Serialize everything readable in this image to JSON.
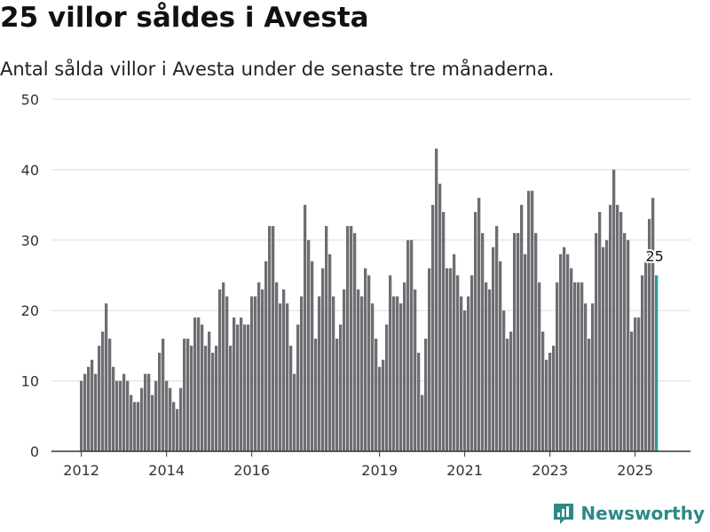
{
  "header": {
    "title": "25 villor såldes i Avesta",
    "subtitle": "Antal sålda villor i Avesta under de senaste tre månaderna."
  },
  "brand": {
    "name": "Newsworthy",
    "color": "#2c8a86",
    "icon": "newsworthy-logo-icon"
  },
  "colors": {
    "bar": "#6e6d72",
    "highlight": "#2a9a96",
    "grid": "#dddddd",
    "axis": "#333333"
  },
  "chart_data": {
    "type": "bar",
    "ylim": [
      0,
      50
    ],
    "yticks": [
      0,
      10,
      20,
      30,
      40,
      50
    ],
    "xticks": [
      {
        "label": "2012",
        "index": 0
      },
      {
        "label": "2014",
        "index": 24
      },
      {
        "label": "2016",
        "index": 48
      },
      {
        "label": "2019",
        "index": 84
      },
      {
        "label": "2021",
        "index": 108
      },
      {
        "label": "2023",
        "index": 132
      },
      {
        "label": "2025",
        "index": 156
      }
    ],
    "annotation": {
      "label": "25",
      "value": 25
    },
    "start": "2012-01",
    "values": [
      10,
      11,
      12,
      13,
      11,
      15,
      17,
      21,
      16,
      12,
      10,
      10,
      11,
      10,
      8,
      7,
      7,
      9,
      11,
      11,
      8,
      10,
      14,
      16,
      10,
      9,
      7,
      6,
      9,
      16,
      16,
      15,
      19,
      19,
      18,
      15,
      17,
      14,
      15,
      23,
      24,
      22,
      15,
      19,
      18,
      19,
      18,
      18,
      22,
      22,
      24,
      23,
      27,
      32,
      32,
      24,
      21,
      23,
      21,
      15,
      11,
      18,
      22,
      35,
      30,
      27,
      16,
      22,
      26,
      32,
      28,
      22,
      16,
      18,
      23,
      32,
      32,
      31,
      23,
      22,
      26,
      25,
      21,
      16,
      12,
      13,
      18,
      25,
      22,
      22,
      21,
      24,
      30,
      30,
      23,
      14,
      8,
      16,
      26,
      35,
      43,
      38,
      34,
      26,
      26,
      28,
      25,
      22,
      20,
      22,
      25,
      34,
      36,
      31,
      24,
      23,
      29,
      32,
      27,
      20,
      16,
      17,
      31,
      31,
      35,
      28,
      37,
      37,
      31,
      24,
      17,
      13,
      14,
      15,
      24,
      28,
      29,
      28,
      26,
      24,
      24,
      24,
      21,
      16,
      21,
      31,
      34,
      29,
      30,
      35,
      40,
      35,
      34,
      31,
      30,
      17,
      19,
      19,
      25,
      27,
      33,
      36,
      25
    ]
  }
}
